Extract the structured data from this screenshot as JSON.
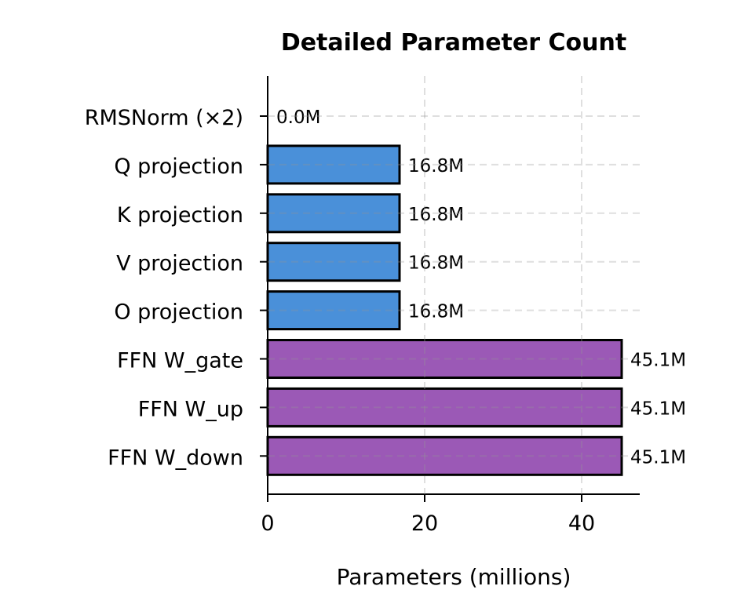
{
  "chart_data": {
    "type": "bar",
    "orientation": "horizontal",
    "title": "Detailed Parameter Count",
    "xlabel": "Parameters (millions)",
    "ylabel": "",
    "xlim": [
      0,
      47.4
    ],
    "xticks": [
      0,
      20,
      40
    ],
    "grid": true,
    "categories": [
      "RMSNorm (×2)",
      "Q projection",
      "K projection",
      "V projection",
      "O projection",
      "FFN W_gate",
      "FFN W_up",
      "FFN W_down"
    ],
    "values": [
      0.0,
      16.8,
      16.8,
      16.8,
      16.8,
      45.1,
      45.1,
      45.1
    ],
    "labels": [
      "0.0M",
      "16.8M",
      "16.8M",
      "16.8M",
      "16.8M",
      "45.1M",
      "45.1M",
      "45.1M"
    ],
    "colors": [
      "#4a90d9",
      "#4a90d9",
      "#4a90d9",
      "#4a90d9",
      "#4a90d9",
      "#9b59b6",
      "#9b59b6",
      "#9b59b6"
    ]
  }
}
